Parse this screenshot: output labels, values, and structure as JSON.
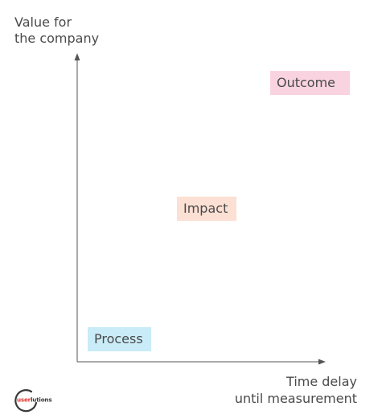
{
  "axes": {
    "y_label": [
      "Value for",
      "the company"
    ],
    "x_label": [
      "Time delay",
      "until measurement"
    ]
  },
  "boxes": {
    "outcome": {
      "label": "Outcome",
      "color": "#f9d3e0"
    },
    "impact": {
      "label": "Impact",
      "color": "#fbe0d3"
    },
    "process": {
      "label": "Process",
      "color": "#c9ecf8"
    }
  },
  "logo": {
    "text": "userlutions",
    "accent_color": "#e3322b",
    "text_color": "#3a3a3a"
  }
}
